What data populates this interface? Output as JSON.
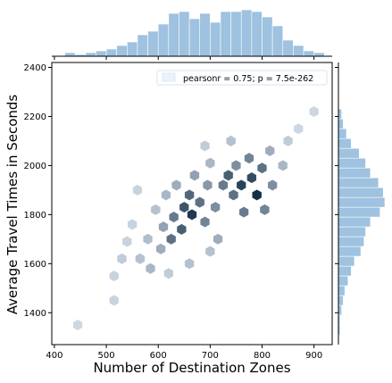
{
  "chart_data": {
    "type": "hexbin",
    "xlabel": "Number of Destination Zones",
    "ylabel": "Average Travel Times in Seconds",
    "xlim": [
      395,
      935
    ],
    "ylim": [
      1270,
      2420
    ],
    "xticks": [
      "400",
      "500",
      "600",
      "700",
      "800",
      "900"
    ],
    "yticks": [
      "1400",
      "1600",
      "1800",
      "2000",
      "2200",
      "2400"
    ],
    "annotation": "pearsonr = 0.75; p = 7.5e-262",
    "grid": false,
    "colors": {
      "hex": "#1f5b8e",
      "hist": "#9ec2df"
    },
    "hexbin_density": [
      {
        "x": 445,
        "y": 1350,
        "d": 0.1
      },
      {
        "x": 515,
        "y": 1450,
        "d": 0.12
      },
      {
        "x": 515,
        "y": 1550,
        "d": 0.12
      },
      {
        "x": 530,
        "y": 1620,
        "d": 0.15
      },
      {
        "x": 540,
        "y": 1690,
        "d": 0.12
      },
      {
        "x": 550,
        "y": 1760,
        "d": 0.12
      },
      {
        "x": 565,
        "y": 1620,
        "d": 0.2
      },
      {
        "x": 580,
        "y": 1700,
        "d": 0.22
      },
      {
        "x": 585,
        "y": 1580,
        "d": 0.25
      },
      {
        "x": 595,
        "y": 1820,
        "d": 0.2
      },
      {
        "x": 605,
        "y": 1660,
        "d": 0.3
      },
      {
        "x": 610,
        "y": 1750,
        "d": 0.35
      },
      {
        "x": 615,
        "y": 1880,
        "d": 0.25
      },
      {
        "x": 625,
        "y": 1700,
        "d": 0.6
      },
      {
        "x": 630,
        "y": 1790,
        "d": 0.55
      },
      {
        "x": 635,
        "y": 1920,
        "d": 0.3
      },
      {
        "x": 645,
        "y": 1740,
        "d": 0.7
      },
      {
        "x": 650,
        "y": 1830,
        "d": 0.75
      },
      {
        "x": 660,
        "y": 1880,
        "d": 0.65
      },
      {
        "x": 665,
        "y": 1800,
        "d": 0.9
      },
      {
        "x": 670,
        "y": 1960,
        "d": 0.35
      },
      {
        "x": 680,
        "y": 1850,
        "d": 0.6
      },
      {
        "x": 690,
        "y": 1770,
        "d": 0.5
      },
      {
        "x": 695,
        "y": 1920,
        "d": 0.4
      },
      {
        "x": 700,
        "y": 2010,
        "d": 0.25
      },
      {
        "x": 710,
        "y": 1830,
        "d": 0.45
      },
      {
        "x": 715,
        "y": 1700,
        "d": 0.3
      },
      {
        "x": 725,
        "y": 1920,
        "d": 0.55
      },
      {
        "x": 735,
        "y": 1960,
        "d": 0.7
      },
      {
        "x": 745,
        "y": 1880,
        "d": 0.6
      },
      {
        "x": 750,
        "y": 2000,
        "d": 0.45
      },
      {
        "x": 760,
        "y": 1920,
        "d": 0.85
      },
      {
        "x": 765,
        "y": 1810,
        "d": 0.55
      },
      {
        "x": 775,
        "y": 2030,
        "d": 0.5
      },
      {
        "x": 780,
        "y": 1950,
        "d": 0.8
      },
      {
        "x": 790,
        "y": 1880,
        "d": 0.95
      },
      {
        "x": 800,
        "y": 1990,
        "d": 0.6
      },
      {
        "x": 805,
        "y": 1820,
        "d": 0.5
      },
      {
        "x": 815,
        "y": 2060,
        "d": 0.3
      },
      {
        "x": 820,
        "y": 1920,
        "d": 0.45
      },
      {
        "x": 840,
        "y": 2000,
        "d": 0.25
      },
      {
        "x": 850,
        "y": 2100,
        "d": 0.15
      },
      {
        "x": 870,
        "y": 2150,
        "d": 0.1
      },
      {
        "x": 900,
        "y": 2220,
        "d": 0.1
      },
      {
        "x": 560,
        "y": 1900,
        "d": 0.12
      },
      {
        "x": 740,
        "y": 2100,
        "d": 0.2
      },
      {
        "x": 690,
        "y": 2080,
        "d": 0.15
      },
      {
        "x": 620,
        "y": 1560,
        "d": 0.15
      },
      {
        "x": 660,
        "y": 1600,
        "d": 0.2
      },
      {
        "x": 700,
        "y": 1650,
        "d": 0.2
      }
    ],
    "x_hist": {
      "bins": [
        430,
        450,
        470,
        490,
        510,
        530,
        550,
        570,
        590,
        610,
        630,
        650,
        670,
        690,
        710,
        730,
        750,
        770,
        790,
        810,
        830,
        850,
        870,
        890,
        910
      ],
      "counts": [
        2,
        1,
        2,
        3,
        4,
        6,
        8,
        12,
        14,
        18,
        24,
        25,
        21,
        24,
        19,
        25,
        25,
        26,
        25,
        22,
        17,
        9,
        6,
        3,
        2
      ]
    },
    "y_hist": {
      "bins": [
        1330,
        1370,
        1410,
        1450,
        1490,
        1530,
        1570,
        1610,
        1650,
        1690,
        1730,
        1770,
        1810,
        1850,
        1890,
        1930,
        1970,
        2010,
        2050,
        2090,
        2130,
        2170,
        2210
      ],
      "counts": [
        1,
        1,
        2,
        3,
        4,
        6,
        8,
        10,
        14,
        16,
        17,
        20,
        26,
        29,
        28,
        25,
        20,
        17,
        13,
        8,
        5,
        3,
        2
      ]
    }
  }
}
